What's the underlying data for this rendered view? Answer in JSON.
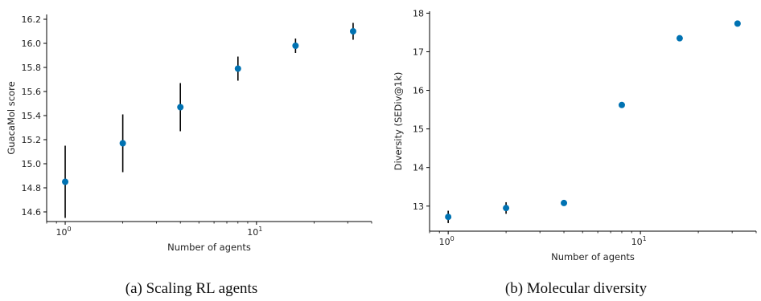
{
  "chart_data": [
    {
      "type": "scatter",
      "xscale": "log",
      "xlabel": "Number of agents",
      "ylabel": "GuacaMol score",
      "caption": "(a) Scaling RL agents",
      "xlim": [
        0.8,
        40
      ],
      "ylim": [
        14.52,
        16.24
      ],
      "yticks": [
        "14.6",
        "14.8",
        "15.0",
        "15.2",
        "15.4",
        "15.6",
        "15.8",
        "16.0",
        "16.2"
      ],
      "xtick_labels": [
        {
          "base": "10",
          "exp": "0"
        },
        {
          "base": "10",
          "exp": "1"
        }
      ],
      "x": [
        1,
        2,
        4,
        8,
        16,
        32
      ],
      "y": [
        14.85,
        15.17,
        15.47,
        15.79,
        15.98,
        16.1
      ],
      "yerr": [
        0.3,
        0.24,
        0.2,
        0.1,
        0.06,
        0.07
      ],
      "color": "#0072b2"
    },
    {
      "type": "scatter",
      "xscale": "log",
      "xlabel": "Number of agents",
      "ylabel": "Diversity (SEDiv@1k)",
      "caption": "(b) Molecular diversity",
      "xlim": [
        0.8,
        40
      ],
      "ylim": [
        12.35,
        18.05
      ],
      "yticks": [
        "13",
        "14",
        "15",
        "16",
        "17",
        "18"
      ],
      "xtick_labels": [
        {
          "base": "10",
          "exp": "0"
        },
        {
          "base": "10",
          "exp": "1"
        }
      ],
      "x": [
        1,
        2,
        4,
        8,
        16,
        32
      ],
      "y": [
        12.72,
        12.95,
        13.08,
        15.62,
        17.35,
        17.73
      ],
      "yerr": [
        0.16,
        0.15,
        0.05,
        0.03,
        0.03,
        0.03
      ],
      "color": "#0072b2"
    }
  ]
}
